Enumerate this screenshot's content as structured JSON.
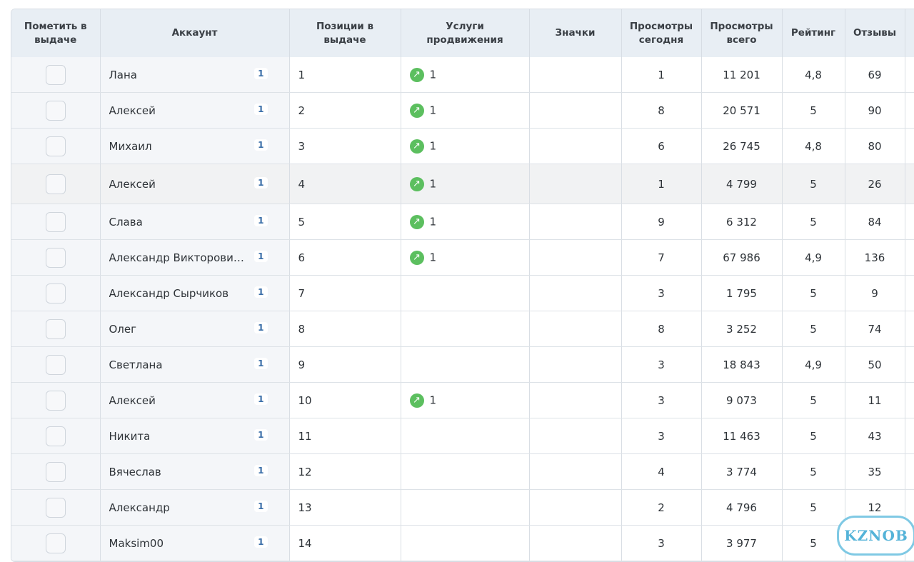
{
  "table": {
    "headers": [
      "Пометить в выдаче",
      "Аккаунт",
      "Позиции в выдаче",
      "Услуги продвижения",
      "Значки",
      "Просмотры сегодня",
      "Просмотры всего",
      "Рейтинг",
      "Отзывы"
    ],
    "rows": [
      {
        "account": "Лана",
        "badge": "1",
        "position": "1",
        "promo": "1",
        "views_today": "1",
        "views_total": "11 201",
        "rating": "4,8",
        "reviews": "69"
      },
      {
        "account": "Алексей",
        "badge": "1",
        "position": "2",
        "promo": "1",
        "views_today": "8",
        "views_total": "20 571",
        "rating": "5",
        "reviews": "90"
      },
      {
        "account": "Михаил",
        "badge": "1",
        "position": "3",
        "promo": "1",
        "views_today": "6",
        "views_total": "26 745",
        "rating": "4,8",
        "reviews": "80"
      },
      {
        "account": "Алексей",
        "badge": "1",
        "position": "4",
        "promo": "1",
        "views_today": "1",
        "views_total": "4 799",
        "rating": "5",
        "reviews": "26"
      },
      {
        "account": "Слава",
        "badge": "1",
        "position": "5",
        "promo": "1",
        "views_today": "9",
        "views_total": "6 312",
        "rating": "5",
        "reviews": "84"
      },
      {
        "account": "Александр Викторови…",
        "badge": "1",
        "position": "6",
        "promo": "1",
        "views_today": "7",
        "views_total": "67 986",
        "rating": "4,9",
        "reviews": "136"
      },
      {
        "account": "Александр Сырчиков",
        "badge": "1",
        "position": "7",
        "promo": null,
        "views_today": "3",
        "views_total": "1 795",
        "rating": "5",
        "reviews": "9"
      },
      {
        "account": "Олег",
        "badge": "1",
        "position": "8",
        "promo": null,
        "views_today": "8",
        "views_total": "3 252",
        "rating": "5",
        "reviews": "74"
      },
      {
        "account": "Светлана",
        "badge": "1",
        "position": "9",
        "promo": null,
        "views_today": "3",
        "views_total": "18 843",
        "rating": "4,9",
        "reviews": "50"
      },
      {
        "account": "Алексей",
        "badge": "1",
        "position": "10",
        "promo": "1",
        "views_today": "3",
        "views_total": "9 073",
        "rating": "5",
        "reviews": "11"
      },
      {
        "account": "Никита",
        "badge": "1",
        "position": "11",
        "promo": null,
        "views_today": "3",
        "views_total": "11 463",
        "rating": "5",
        "reviews": "43"
      },
      {
        "account": "Вячеслав",
        "badge": "1",
        "position": "12",
        "promo": null,
        "views_today": "4",
        "views_total": "3 774",
        "rating": "5",
        "reviews": "35"
      },
      {
        "account": "Александр",
        "badge": "1",
        "position": "13",
        "promo": null,
        "views_today": "2",
        "views_total": "4 796",
        "rating": "5",
        "reviews": "12"
      },
      {
        "account": "Maksim00",
        "badge": "1",
        "position": "14",
        "promo": null,
        "views_today": "3",
        "views_total": "3 977",
        "rating": "5",
        "reviews": null
      }
    ]
  },
  "watermark": "KZNOB"
}
